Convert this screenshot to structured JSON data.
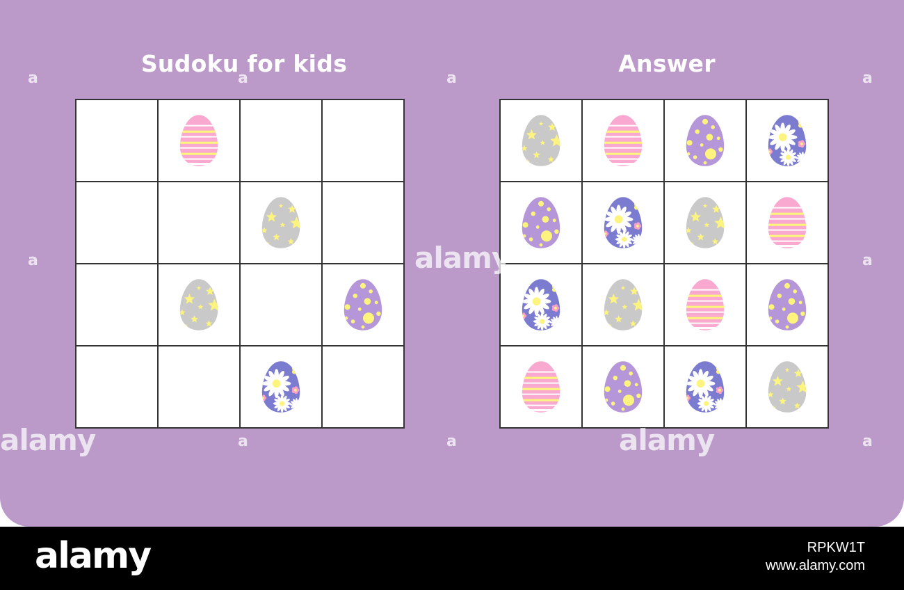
{
  "colors": {
    "background": "#bb9ac9",
    "grid_line": "#333333",
    "cell_fill": "#ffffff",
    "footer": "#000000",
    "pink_egg": "#f9a8cf",
    "yellow_stripe": "#fdf47f",
    "gray_egg": "#c9c9c9",
    "star": "#fdf47f",
    "purple_egg": "#b596d8",
    "blue_egg": "#7b7bd0",
    "dot": "#fdf47f",
    "flower_pink": "#f7a1c9"
  },
  "puzzle": {
    "title": "Sudoku for kids",
    "grid": [
      [
        "",
        "striped-pink",
        "",
        ""
      ],
      [
        "",
        "",
        "star-gray",
        ""
      ],
      [
        "",
        "star-gray",
        "",
        "dotted-purple"
      ],
      [
        "",
        "",
        "flower-blue",
        ""
      ]
    ]
  },
  "answer": {
    "title": "Answer",
    "grid": [
      [
        "star-gray",
        "striped-pink",
        "dotted-purple",
        "flower-blue"
      ],
      [
        "dotted-purple",
        "flower-blue",
        "star-gray",
        "striped-pink"
      ],
      [
        "flower-blue",
        "star-gray",
        "striped-pink",
        "dotted-purple"
      ],
      [
        "striped-pink",
        "dotted-purple",
        "flower-blue",
        "star-gray"
      ]
    ]
  },
  "watermarks": {
    "small": "a",
    "word": "alamy"
  },
  "footer": {
    "logo": "alamy",
    "image_id": "RPKW1T",
    "url": "www.alamy.com"
  }
}
